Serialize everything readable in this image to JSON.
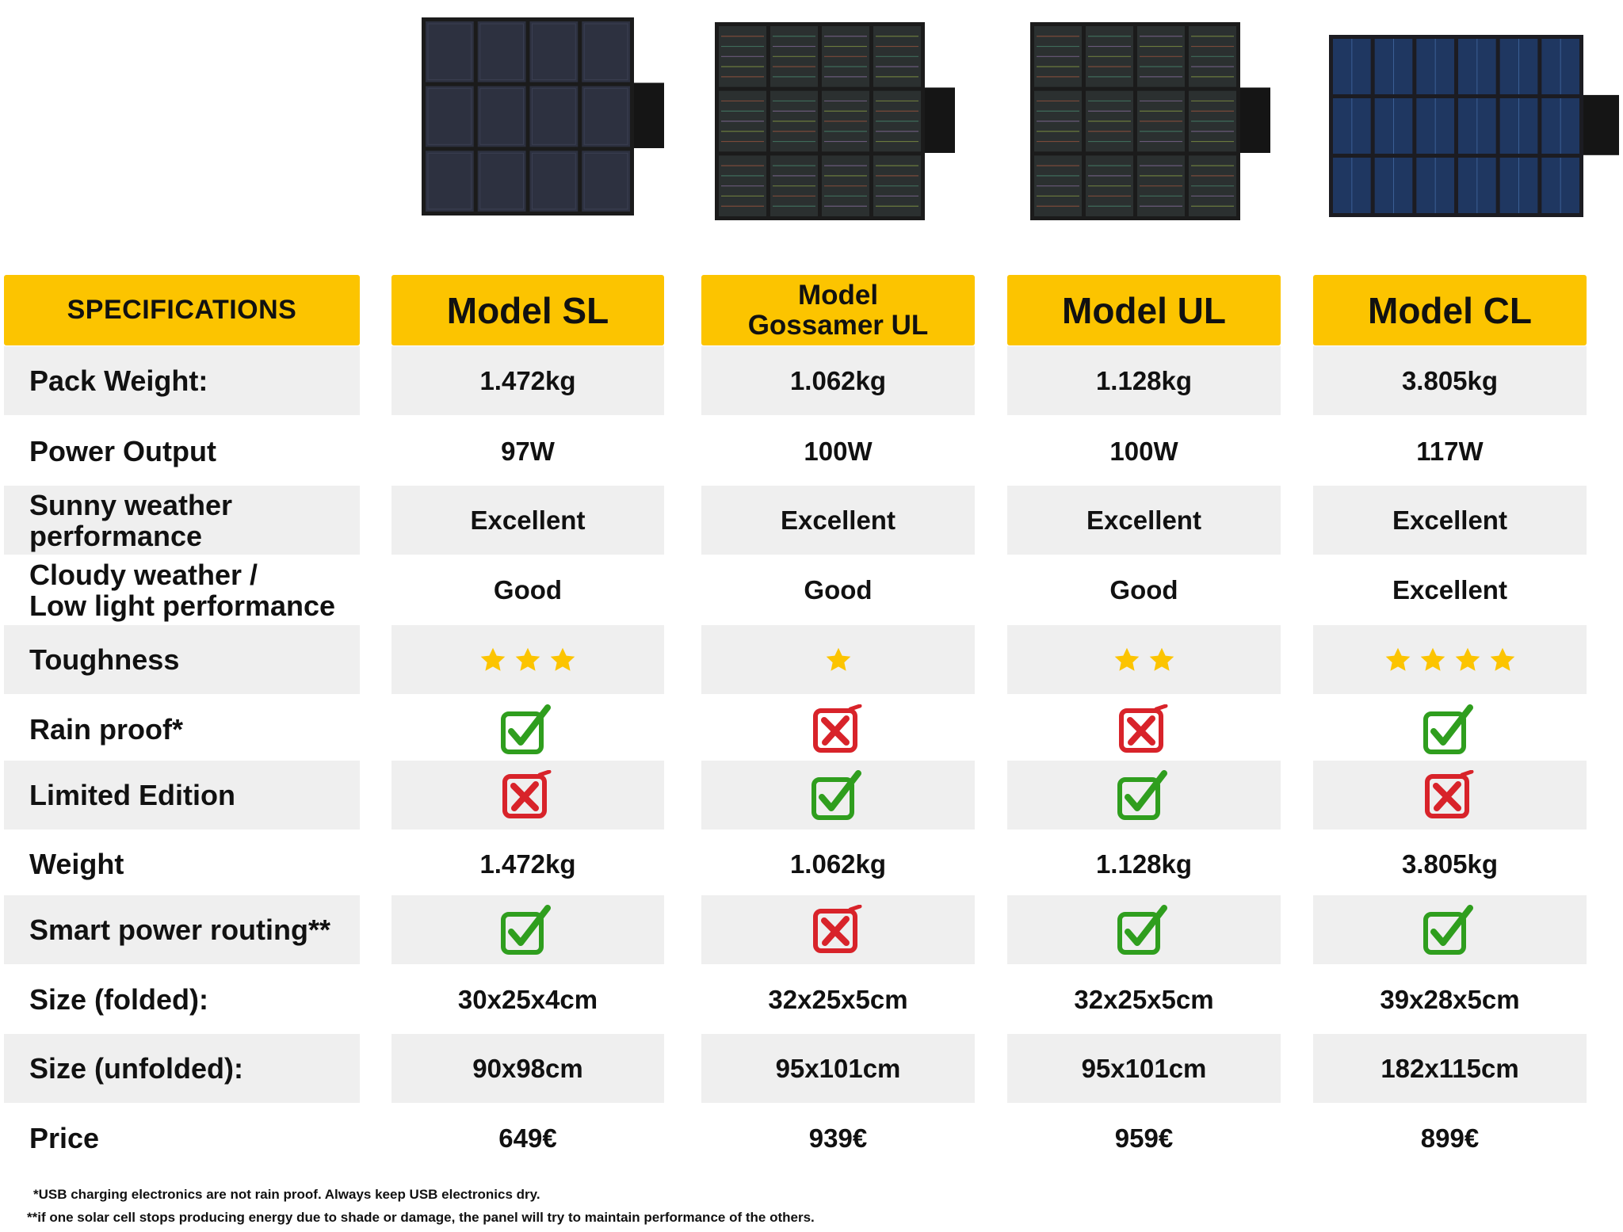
{
  "header": {
    "specifications": "SPECIFICATIONS"
  },
  "models": [
    {
      "name": "Model SL",
      "panel_style": "mono-dark"
    },
    {
      "name": "Model\nGossamer UL",
      "panel_style": "striped"
    },
    {
      "name": "Model UL",
      "panel_style": "striped"
    },
    {
      "name": "Model CL",
      "panel_style": "blue"
    }
  ],
  "rows": [
    {
      "label": "Pack Weight:",
      "type": "text",
      "values": [
        "1.472kg",
        "1.062kg",
        "1.128kg",
        "3.805kg"
      ]
    },
    {
      "label": "Power Output",
      "type": "text",
      "values": [
        "97W",
        "100W",
        "100W",
        "117W"
      ]
    },
    {
      "label": "Sunny weather\nperformance",
      "type": "text",
      "values": [
        "Excellent",
        "Excellent",
        "Excellent",
        "Excellent"
      ]
    },
    {
      "label": "Cloudy weather /\nLow light performance",
      "type": "text",
      "values": [
        "Good",
        "Good",
        "Good",
        "Excellent"
      ]
    },
    {
      "label": "Toughness",
      "type": "stars",
      "values": [
        3,
        1,
        2,
        4
      ]
    },
    {
      "label": "Rain proof*",
      "type": "check",
      "values": [
        true,
        false,
        false,
        true
      ]
    },
    {
      "label": "Limited Edition",
      "type": "check",
      "values": [
        false,
        true,
        true,
        false
      ]
    },
    {
      "label": "Weight",
      "type": "text",
      "values": [
        "1.472kg",
        "1.062kg",
        "1.128kg",
        "3.805kg"
      ]
    },
    {
      "label": "Smart power routing**",
      "type": "check",
      "values": [
        true,
        false,
        true,
        true
      ]
    },
    {
      "label": "Size (folded):",
      "type": "text",
      "values": [
        "30x25x4cm",
        "32x25x5cm",
        "32x25x5cm",
        "39x28x5cm"
      ]
    },
    {
      "label": "Size (unfolded):",
      "type": "text",
      "values": [
        "90x98cm",
        "95x101cm",
        "95x101cm",
        "182x115cm"
      ]
    },
    {
      "label": "Price",
      "type": "text",
      "values": [
        "649€",
        "939€",
        "959€",
        "899€"
      ]
    }
  ],
  "footnotes": [
    "*USB charging electronics are not rain proof. Always keep USB electronics dry.",
    "**if one solar cell stops producing energy due to shade or damage, the panel will try to maintain performance of the others."
  ],
  "colors": {
    "header_yellow": "#fcc400",
    "row_gray": "#efefef",
    "star": "#fcc400",
    "check_green": "#2f9e1e",
    "cross_red": "#d8232a"
  },
  "icons": {
    "star": "star-icon",
    "check": "checkmark-icon",
    "cross": "cross-icon"
  }
}
